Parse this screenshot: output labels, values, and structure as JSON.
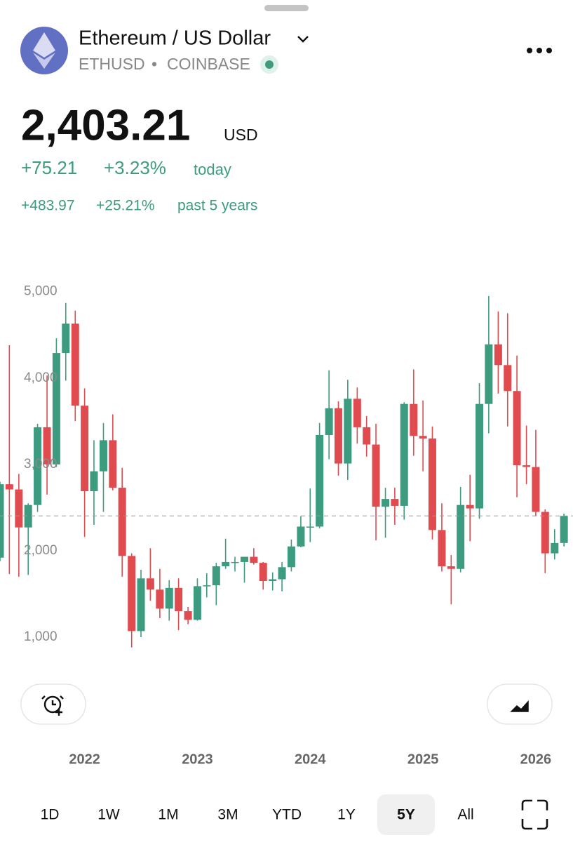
{
  "header": {
    "title": "Ethereum / US Dollar",
    "symbol": "ETHUSD",
    "separator": "•",
    "exchange": "COINBASE"
  },
  "price": {
    "value": "2,403.21",
    "currency": "USD",
    "change_today": "+75.21",
    "change_today_pct": "+3.23%",
    "today_label": "today",
    "change_period": "+483.97",
    "change_period_pct": "+25.21%",
    "period_label": "past 5 years"
  },
  "chart_data": {
    "type": "candlestick",
    "x": [
      2021.25,
      2021.333,
      2021.417,
      2021.5,
      2021.583,
      2021.667,
      2021.75,
      2021.833,
      2021.917,
      2022,
      2022.083,
      2022.167,
      2022.25,
      2022.333,
      2022.417,
      2022.5,
      2022.583,
      2022.667,
      2022.75,
      2022.833,
      2022.917,
      2023,
      2023.083,
      2023.167,
      2023.25,
      2023.333,
      2023.417,
      2023.5,
      2023.583,
      2023.667,
      2023.75,
      2023.833,
      2023.917,
      2024,
      2024.083,
      2024.167,
      2024.25,
      2024.333,
      2024.417,
      2024.5,
      2024.583,
      2024.667,
      2024.75,
      2024.833,
      2024.917,
      2025,
      2025.083,
      2025.167,
      2025.25,
      2025.333,
      2025.417,
      2025.5,
      2025.583,
      2025.667,
      2025.75,
      2025.833,
      2025.917,
      2026,
      2026.083,
      2026.167,
      2026.25
    ],
    "open": [
      1920,
      2770,
      2710,
      2270,
      2530,
      3430,
      3000,
      4290,
      4630,
      3680,
      2690,
      2920,
      3280,
      2730,
      1940,
      1070,
      1680,
      1550,
      1330,
      1570,
      1300,
      1200,
      1590,
      1600,
      1820,
      1870,
      1870,
      1930,
      1860,
      1650,
      1670,
      1810,
      2050,
      2280,
      2280,
      3340,
      3650,
      3010,
      3760,
      3430,
      3230,
      2510,
      2600,
      2520,
      3700,
      3330,
      3300,
      2240,
      1820,
      1790,
      2530,
      2490,
      3700,
      4390,
      4150,
      3850,
      2990,
      2970,
      2450,
      1970,
      2090
    ],
    "high": [
      2800,
      4380,
      2890,
      2550,
      3470,
      4030,
      4460,
      4870,
      4780,
      3880,
      3280,
      3480,
      3580,
      2960,
      1970,
      1780,
      2030,
      1790,
      1660,
      1680,
      1350,
      1680,
      1740,
      1860,
      2140,
      1930,
      1930,
      2030,
      1870,
      1750,
      1870,
      2130,
      2400,
      2720,
      3480,
      4090,
      3730,
      3980,
      3890,
      3560,
      3470,
      2730,
      2730,
      3720,
      4100,
      3740,
      3440,
      2550,
      1950,
      2740,
      2880,
      3940,
      4950,
      4770,
      4750,
      4260,
      3450,
      3400,
      2480,
      2250,
      2430
    ],
    "low": [
      1880,
      1730,
      1700,
      1720,
      2450,
      2650,
      2970,
      3970,
      3500,
      2160,
      2300,
      2450,
      2700,
      1700,
      880,
      1000,
      1420,
      1220,
      1190,
      1080,
      1150,
      1190,
      1460,
      1370,
      1790,
      1760,
      1630,
      1840,
      1550,
      1540,
      1530,
      1760,
      2040,
      2100,
      2260,
      3060,
      2870,
      2820,
      3240,
      3090,
      2120,
      2150,
      2300,
      2360,
      3100,
      2920,
      2130,
      1760,
      1380,
      1750,
      2110,
      2370,
      3360,
      3820,
      3440,
      2620,
      2770,
      2400,
      1740,
      1900,
      2050
    ],
    "close": [
      2770,
      2710,
      2270,
      2530,
      3430,
      3000,
      4290,
      4630,
      3680,
      2690,
      2920,
      3280,
      2730,
      1940,
      1070,
      1680,
      1550,
      1330,
      1570,
      1300,
      1200,
      1590,
      1600,
      1820,
      1870,
      1870,
      1930,
      1860,
      1650,
      1670,
      1810,
      2050,
      2280,
      2280,
      3340,
      3650,
      3010,
      3760,
      3430,
      3230,
      2510,
      2600,
      2520,
      3700,
      3330,
      3300,
      2240,
      1820,
      1790,
      2530,
      2490,
      3700,
      4390,
      4150,
      3850,
      2990,
      2970,
      2450,
      1970,
      2090,
      2403.21
    ],
    "colors": {
      "up": "#3d9c7f",
      "down": "#e04b50"
    },
    "xlim": [
      2021.25,
      2026.33
    ],
    "xticks": [
      2022,
      2023,
      2024,
      2025,
      2026
    ],
    "ylim": [
      740,
      5290
    ],
    "yticks": [
      {
        "value": 1000,
        "label": "1,000"
      },
      {
        "value": 2000,
        "label": "2,000"
      },
      {
        "value": 3000,
        "label": "3,000"
      },
      {
        "value": 4000,
        "label": "4,000"
      },
      {
        "value": 5000,
        "label": "5,000"
      }
    ],
    "current_price": 2403.21
  },
  "timeframes": [
    "1D",
    "1W",
    "1M",
    "3M",
    "YTD",
    "1Y",
    "5Y",
    "All"
  ],
  "selected": 6
}
